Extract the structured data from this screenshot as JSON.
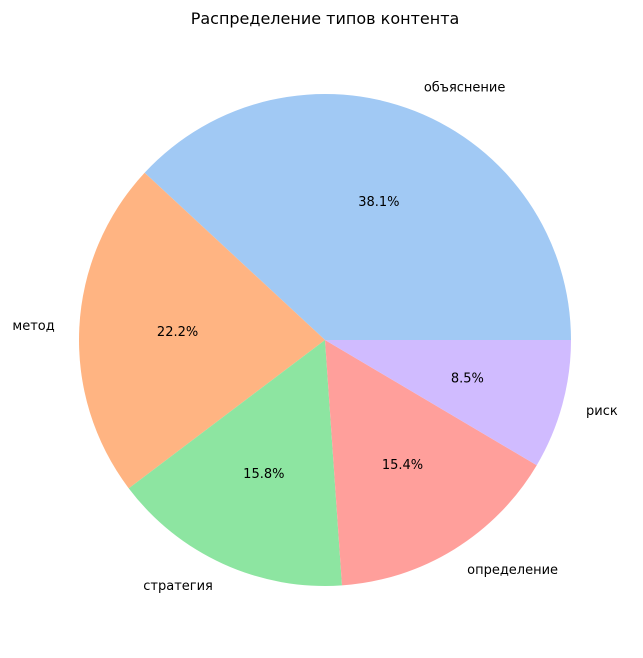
{
  "chart_data": {
    "type": "pie",
    "title": "Распределение типов контента",
    "slices": [
      {
        "label": "объяснение",
        "value": 38.1,
        "pct_label": "38.1%",
        "color": "#a1c9f4"
      },
      {
        "label": "метод",
        "value": 22.2,
        "pct_label": "22.2%",
        "color": "#ffb482"
      },
      {
        "label": "стратегия",
        "value": 15.8,
        "pct_label": "15.8%",
        "color": "#8de5a1"
      },
      {
        "label": "определение",
        "value": 15.4,
        "pct_label": "15.4%",
        "color": "#ff9f9b"
      },
      {
        "label": "риск",
        "value": 8.5,
        "pct_label": "8.5%",
        "color": "#d0bbff"
      }
    ],
    "start_angle_deg": 0,
    "direction": "counterclockwise",
    "legend": "none"
  }
}
